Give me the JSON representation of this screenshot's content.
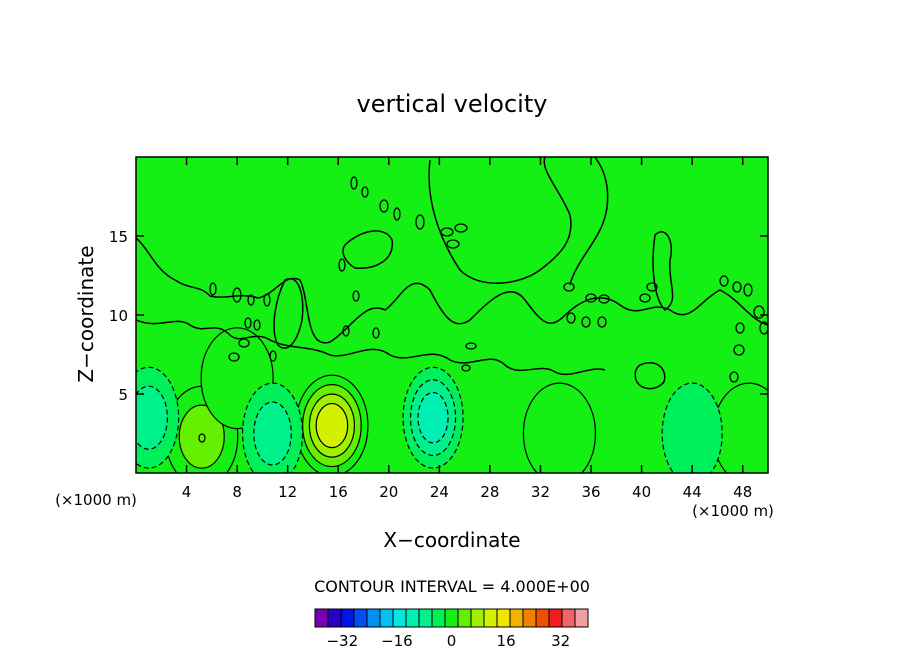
{
  "chart_data": {
    "type": "heatmap",
    "subtype": "filled-contour",
    "title": "vertical velocity",
    "xlabel": "X−coordinate",
    "ylabel": "Z−coordinate",
    "x_unit_left": "(×1000 m)",
    "x_unit_right": "(×1000 m)",
    "xlim": [
      0,
      50
    ],
    "ylim": [
      0,
      20
    ],
    "x_ticks": [
      4,
      8,
      12,
      16,
      20,
      24,
      28,
      32,
      36,
      40,
      44,
      48
    ],
    "x_tick_labels": [
      "4",
      "8",
      "12",
      "16",
      "20",
      "24",
      "28",
      "32",
      "36",
      "40",
      "44",
      "48"
    ],
    "y_ticks": [
      5,
      10,
      15
    ],
    "y_tick_labels": [
      "5",
      "10",
      "15"
    ],
    "contour_interval_label": "CONTOUR INTERVAL = 4.000E+00",
    "contour_interval": 4,
    "colorbar": {
      "levels": [
        -40,
        -36,
        -32,
        -28,
        -24,
        -20,
        -16,
        -12,
        -8,
        -4,
        0,
        4,
        8,
        12,
        16,
        20,
        24,
        28,
        32,
        36,
        40
      ],
      "colors": [
        "#7a00b4",
        "#2a00c8",
        "#0014e6",
        "#0050f0",
        "#0090f0",
        "#00c0f0",
        "#00e6e0",
        "#00f0b4",
        "#00f08c",
        "#00f05a",
        "#14f014",
        "#64f000",
        "#a0f000",
        "#d2f000",
        "#f0e600",
        "#f0b400",
        "#f08200",
        "#f05000",
        "#f01e1e",
        "#f06464",
        "#f0a0a0"
      ],
      "tick_labels": [
        "−32",
        "−16",
        "0",
        "16",
        "32"
      ],
      "tick_values": [
        -32,
        -16,
        0,
        16,
        32
      ]
    },
    "features": [
      {
        "x": 15.5,
        "z": 3.0,
        "value": 16,
        "kind": "updraft"
      },
      {
        "x": 5.2,
        "z": 2.3,
        "value": 8,
        "kind": "updraft"
      },
      {
        "x": 33.5,
        "z": 2.5,
        "value": 4,
        "kind": "updraft"
      },
      {
        "x": 48.5,
        "z": 2.5,
        "value": 4,
        "kind": "updraft"
      },
      {
        "x": 8.0,
        "z": 6.0,
        "value": 4,
        "kind": "updraft"
      },
      {
        "x": 23.5,
        "z": 3.5,
        "value": -12,
        "kind": "downdraft"
      },
      {
        "x": 1.0,
        "z": 3.5,
        "value": -8,
        "kind": "downdraft"
      },
      {
        "x": 10.8,
        "z": 2.5,
        "value": -8,
        "kind": "downdraft"
      },
      {
        "x": 44.0,
        "z": 2.5,
        "value": -4,
        "kind": "downdraft"
      }
    ],
    "background_value": 0
  }
}
